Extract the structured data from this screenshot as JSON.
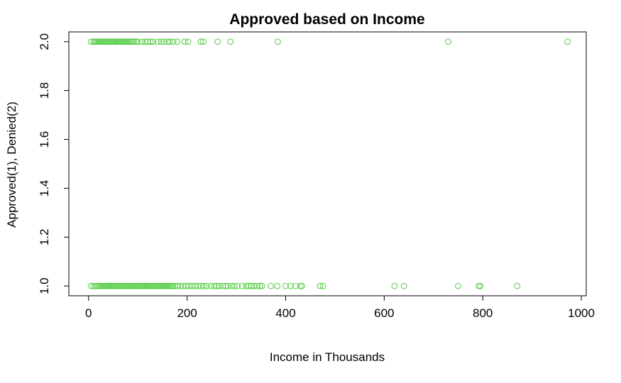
{
  "chart_data": {
    "type": "scatter",
    "title": "Approved based on Income",
    "xlabel": "Income in Thousands",
    "ylabel": "Approved(1), Denied(2)",
    "xlim": [
      -40,
      1010
    ],
    "ylim": [
      0.96,
      2.04
    ],
    "x_ticks": [
      0,
      200,
      400,
      600,
      800,
      1000
    ],
    "y_ticks": [
      1.0,
      1.2,
      1.4,
      1.6,
      1.8,
      2.0
    ],
    "x_tick_labels": [
      "0",
      "200",
      "400",
      "600",
      "800",
      "1000"
    ],
    "y_tick_labels": [
      "1.0",
      "1.2",
      "1.4",
      "1.6",
      "1.8",
      "2.0"
    ],
    "grid": false,
    "marker": "open-circle",
    "color": "#55cc44",
    "series": [
      {
        "values": [
          {
            "x": 5,
            "y": 2
          },
          {
            "x": 10,
            "y": 2
          },
          {
            "x": 13,
            "y": 2
          },
          {
            "x": 16,
            "y": 2
          },
          {
            "x": 19,
            "y": 2
          },
          {
            "x": 22,
            "y": 2
          },
          {
            "x": 25,
            "y": 2
          },
          {
            "x": 28,
            "y": 2
          },
          {
            "x": 31,
            "y": 2
          },
          {
            "x": 34,
            "y": 2
          },
          {
            "x": 37,
            "y": 2
          },
          {
            "x": 40,
            "y": 2
          },
          {
            "x": 43,
            "y": 2
          },
          {
            "x": 46,
            "y": 2
          },
          {
            "x": 49,
            "y": 2
          },
          {
            "x": 52,
            "y": 2
          },
          {
            "x": 55,
            "y": 2
          },
          {
            "x": 58,
            "y": 2
          },
          {
            "x": 61,
            "y": 2
          },
          {
            "x": 64,
            "y": 2
          },
          {
            "x": 67,
            "y": 2
          },
          {
            "x": 70,
            "y": 2
          },
          {
            "x": 73,
            "y": 2
          },
          {
            "x": 76,
            "y": 2
          },
          {
            "x": 79,
            "y": 2
          },
          {
            "x": 82,
            "y": 2
          },
          {
            "x": 85,
            "y": 2
          },
          {
            "x": 88,
            "y": 2
          },
          {
            "x": 92,
            "y": 2
          },
          {
            "x": 96,
            "y": 2
          },
          {
            "x": 100,
            "y": 2
          },
          {
            "x": 108,
            "y": 2
          },
          {
            "x": 115,
            "y": 2
          },
          {
            "x": 120,
            "y": 2
          },
          {
            "x": 126,
            "y": 2
          },
          {
            "x": 131,
            "y": 2
          },
          {
            "x": 140,
            "y": 2
          },
          {
            "x": 147,
            "y": 2
          },
          {
            "x": 153,
            "y": 2
          },
          {
            "x": 160,
            "y": 2
          },
          {
            "x": 165,
            "y": 2
          },
          {
            "x": 172,
            "y": 2
          },
          {
            "x": 180,
            "y": 2
          },
          {
            "x": 195,
            "y": 2
          },
          {
            "x": 202,
            "y": 2
          },
          {
            "x": 228,
            "y": 2
          },
          {
            "x": 233,
            "y": 2
          },
          {
            "x": 262,
            "y": 2
          },
          {
            "x": 288,
            "y": 2
          },
          {
            "x": 384,
            "y": 2
          },
          {
            "x": 730,
            "y": 2
          },
          {
            "x": 972,
            "y": 2
          },
          {
            "x": 5,
            "y": 1
          },
          {
            "x": 10,
            "y": 1
          },
          {
            "x": 14,
            "y": 1
          },
          {
            "x": 18,
            "y": 1
          },
          {
            "x": 21,
            "y": 1
          },
          {
            "x": 24,
            "y": 1
          },
          {
            "x": 27,
            "y": 1
          },
          {
            "x": 30,
            "y": 1
          },
          {
            "x": 33,
            "y": 1
          },
          {
            "x": 36,
            "y": 1
          },
          {
            "x": 39,
            "y": 1
          },
          {
            "x": 42,
            "y": 1
          },
          {
            "x": 45,
            "y": 1
          },
          {
            "x": 48,
            "y": 1
          },
          {
            "x": 51,
            "y": 1
          },
          {
            "x": 54,
            "y": 1
          },
          {
            "x": 57,
            "y": 1
          },
          {
            "x": 60,
            "y": 1
          },
          {
            "x": 63,
            "y": 1
          },
          {
            "x": 66,
            "y": 1
          },
          {
            "x": 69,
            "y": 1
          },
          {
            "x": 72,
            "y": 1
          },
          {
            "x": 75,
            "y": 1
          },
          {
            "x": 78,
            "y": 1
          },
          {
            "x": 81,
            "y": 1
          },
          {
            "x": 84,
            "y": 1
          },
          {
            "x": 87,
            "y": 1
          },
          {
            "x": 90,
            "y": 1
          },
          {
            "x": 93,
            "y": 1
          },
          {
            "x": 96,
            "y": 1
          },
          {
            "x": 99,
            "y": 1
          },
          {
            "x": 102,
            "y": 1
          },
          {
            "x": 105,
            "y": 1
          },
          {
            "x": 108,
            "y": 1
          },
          {
            "x": 111,
            "y": 1
          },
          {
            "x": 114,
            "y": 1
          },
          {
            "x": 117,
            "y": 1
          },
          {
            "x": 120,
            "y": 1
          },
          {
            "x": 123,
            "y": 1
          },
          {
            "x": 126,
            "y": 1
          },
          {
            "x": 129,
            "y": 1
          },
          {
            "x": 132,
            "y": 1
          },
          {
            "x": 135,
            "y": 1
          },
          {
            "x": 138,
            "y": 1
          },
          {
            "x": 141,
            "y": 1
          },
          {
            "x": 144,
            "y": 1
          },
          {
            "x": 147,
            "y": 1
          },
          {
            "x": 150,
            "y": 1
          },
          {
            "x": 153,
            "y": 1
          },
          {
            "x": 156,
            "y": 1
          },
          {
            "x": 159,
            "y": 1
          },
          {
            "x": 162,
            "y": 1
          },
          {
            "x": 165,
            "y": 1
          },
          {
            "x": 168,
            "y": 1
          },
          {
            "x": 171,
            "y": 1
          },
          {
            "x": 175,
            "y": 1
          },
          {
            "x": 180,
            "y": 1
          },
          {
            "x": 186,
            "y": 1
          },
          {
            "x": 192,
            "y": 1
          },
          {
            "x": 198,
            "y": 1
          },
          {
            "x": 204,
            "y": 1
          },
          {
            "x": 210,
            "y": 1
          },
          {
            "x": 216,
            "y": 1
          },
          {
            "x": 222,
            "y": 1
          },
          {
            "x": 228,
            "y": 1
          },
          {
            "x": 234,
            "y": 1
          },
          {
            "x": 240,
            "y": 1
          },
          {
            "x": 248,
            "y": 1
          },
          {
            "x": 255,
            "y": 1
          },
          {
            "x": 260,
            "y": 1
          },
          {
            "x": 265,
            "y": 1
          },
          {
            "x": 272,
            "y": 1
          },
          {
            "x": 278,
            "y": 1
          },
          {
            "x": 283,
            "y": 1
          },
          {
            "x": 290,
            "y": 1
          },
          {
            "x": 296,
            "y": 1
          },
          {
            "x": 302,
            "y": 1
          },
          {
            "x": 312,
            "y": 1
          },
          {
            "x": 320,
            "y": 1
          },
          {
            "x": 325,
            "y": 1
          },
          {
            "x": 330,
            "y": 1
          },
          {
            "x": 336,
            "y": 1
          },
          {
            "x": 342,
            "y": 1
          },
          {
            "x": 348,
            "y": 1
          },
          {
            "x": 352,
            "y": 1
          },
          {
            "x": 370,
            "y": 1
          },
          {
            "x": 383,
            "y": 1
          },
          {
            "x": 400,
            "y": 1
          },
          {
            "x": 410,
            "y": 1
          },
          {
            "x": 420,
            "y": 1
          },
          {
            "x": 430,
            "y": 1
          },
          {
            "x": 433,
            "y": 1
          },
          {
            "x": 470,
            "y": 1
          },
          {
            "x": 476,
            "y": 1
          },
          {
            "x": 621,
            "y": 1
          },
          {
            "x": 640,
            "y": 1
          },
          {
            "x": 750,
            "y": 1
          },
          {
            "x": 792,
            "y": 1
          },
          {
            "x": 795,
            "y": 1
          },
          {
            "x": 870,
            "y": 1
          }
        ]
      }
    ]
  }
}
